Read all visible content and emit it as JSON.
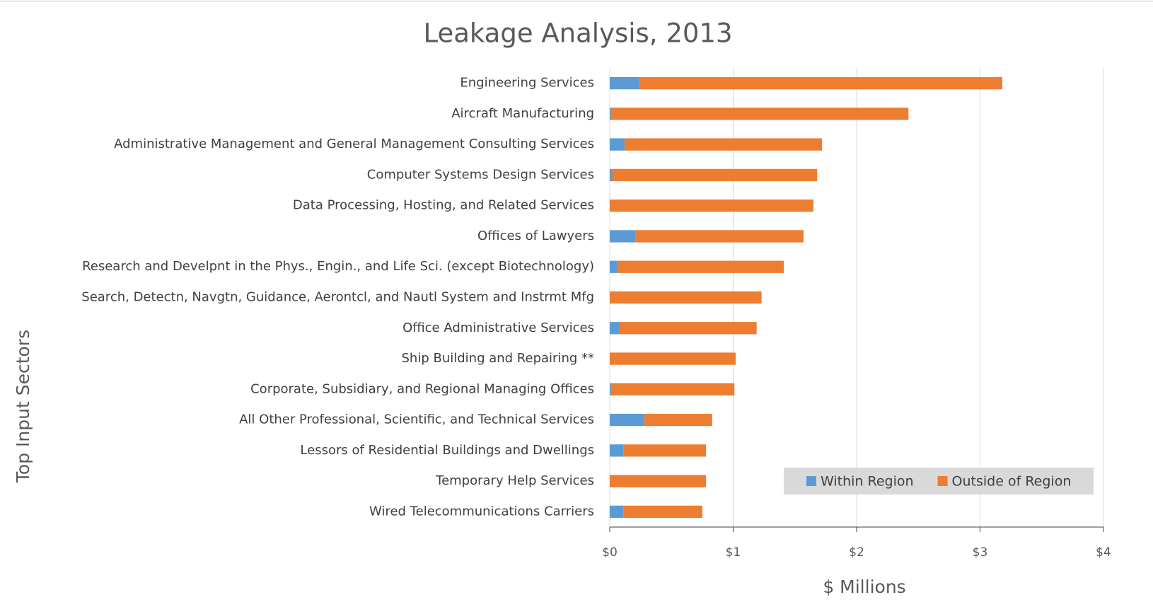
{
  "chart_data": {
    "type": "bar",
    "orientation": "horizontal",
    "stacked": true,
    "title": "Leakage Analysis, 2013",
    "x_label": "$ Millions",
    "y_label": "Top Input Sectors",
    "categories": [
      "Engineering Services",
      "Aircraft Manufacturing",
      "Administrative Management and General Management Consulting Services",
      "Computer Systems Design Services",
      "Data Processing, Hosting, and Related Services",
      "Offices of Lawyers",
      "Research and Develpnt in the Phys., Engin., and Life Sci. (except Biotechnology)",
      "Search, Detectn, Navgtn, Guidance, Aerontcl, and Nautl System and Instrmt Mfg",
      "Office Administrative Services",
      "Ship Building and Repairing **",
      "Corporate, Subsidiary, and Regional Managing Offices",
      "All Other Professional, Scientific, and Technical Services",
      "Lessors of Residential Buildings and Dwellings",
      "Temporary Help Services",
      "Wired Telecommunications Carriers"
    ],
    "series": [
      {
        "name": "Within Region",
        "color": "#5b9bd5",
        "values": [
          0.24,
          0.01,
          0.12,
          0.02,
          0,
          0.21,
          0.06,
          0,
          0.08,
          0,
          0.01,
          0.28,
          0.11,
          0,
          0.11
        ]
      },
      {
        "name": "Outside of Region",
        "color": "#ed7d31",
        "values": [
          2.94,
          2.41,
          1.6,
          1.66,
          1.65,
          1.36,
          1.35,
          1.23,
          1.11,
          1.02,
          1.0,
          0.55,
          0.67,
          0.78,
          0.64
        ]
      }
    ],
    "xlim": [
      0,
      4
    ],
    "xticks": [
      {
        "value": 0,
        "label": "$0"
      },
      {
        "value": 1,
        "label": "$1"
      },
      {
        "value": 2,
        "label": "$2"
      },
      {
        "value": 3,
        "label": "$3"
      },
      {
        "value": 4,
        "label": "$4"
      }
    ],
    "grid": true,
    "legend": "lower right"
  }
}
